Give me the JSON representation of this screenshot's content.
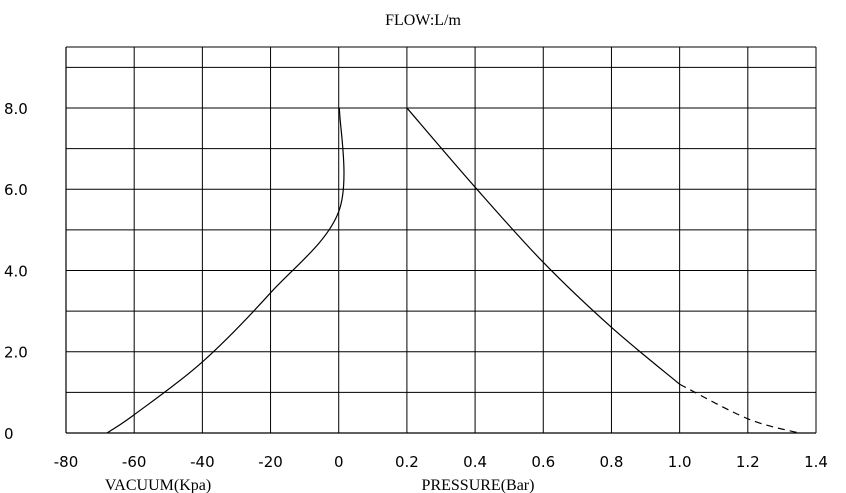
{
  "chart_data": {
    "type": "line",
    "title": "FLOW:L/m",
    "xlabel_left": "VACUUM(Kpa)",
    "xlabel_right": "PRESSURE(Bar)",
    "ylabel": "",
    "x_tick_labels": [
      "-80",
      "-60",
      "-40",
      "-20",
      "0",
      "0.2",
      "0.4",
      "0.6",
      "0.8",
      "1.0",
      "1.2",
      "1.4"
    ],
    "y_tick_labels": [
      "0",
      "2.0",
      "4.0",
      "6.0",
      "8.0"
    ],
    "y_ticks": [
      0,
      2,
      4,
      6,
      8
    ],
    "ylim": [
      0,
      9.5
    ],
    "grid": true,
    "series": [
      {
        "segment": "vacuum",
        "style": "solid",
        "points": [
          [
            -68,
            0
          ],
          [
            -60,
            0.45
          ],
          [
            -40,
            1.75
          ],
          [
            -20,
            3.45
          ],
          [
            0,
            5.45
          ],
          [
            0.2,
            8.0
          ]
        ]
      },
      {
        "segment": "pressure",
        "style": "solid",
        "points": [
          [
            0.2,
            8.0
          ],
          [
            0.4,
            6.05
          ],
          [
            0.6,
            4.2
          ],
          [
            0.8,
            2.6
          ],
          [
            1.0,
            1.2
          ]
        ]
      },
      {
        "segment": "pressure",
        "style": "dashed",
        "points": [
          [
            1.0,
            1.2
          ],
          [
            1.2,
            0.35
          ],
          [
            1.35,
            0
          ]
        ]
      }
    ]
  }
}
